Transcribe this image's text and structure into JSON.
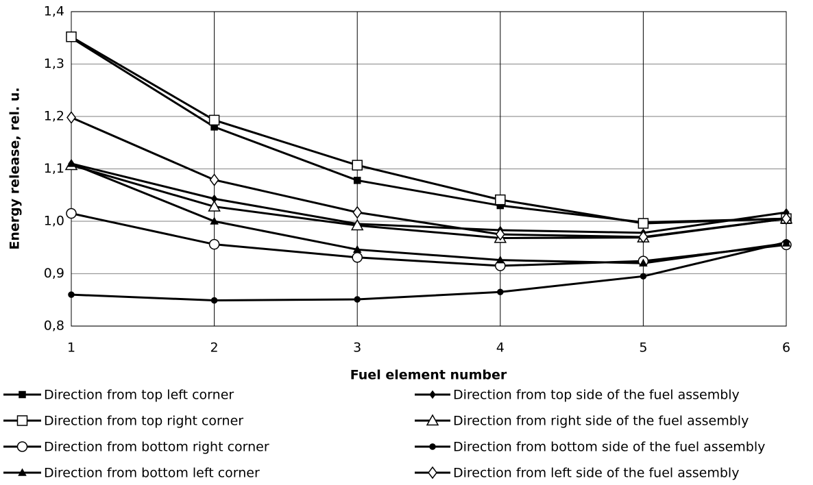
{
  "chart_data": {
    "type": "line",
    "x_label": "Fuel element number",
    "y_label": "Energy release, rel. u.",
    "x": [
      1,
      2,
      3,
      4,
      5,
      6
    ],
    "xlim": [
      1,
      6
    ],
    "xticks": [
      1,
      2,
      3,
      4,
      5,
      6
    ],
    "ylim": [
      0.8,
      1.4
    ],
    "yticks": [
      {
        "value": 0.8,
        "label": "0,8"
      },
      {
        "value": 0.9,
        "label": "0,9"
      },
      {
        "value": 1.0,
        "label": "1,0"
      },
      {
        "value": 1.1,
        "label": "1,1"
      },
      {
        "value": 1.2,
        "label": "1,2"
      },
      {
        "value": 1.3,
        "label": "1,3"
      },
      {
        "value": 1.4,
        "label": "1,4"
      }
    ],
    "grid": true,
    "series": [
      {
        "name": "Direction from top left corner",
        "color": "#000000",
        "marker": "square-filled",
        "values": [
          1.35,
          1.18,
          1.078,
          1.03,
          0.998,
          1.005
        ]
      },
      {
        "name": "Direction from top side of the fuel assembly",
        "color": "#000000",
        "marker": "diamond-filled",
        "values": [
          1.11,
          1.043,
          0.995,
          0.983,
          0.978,
          1.017
        ]
      },
      {
        "name": "Direction from top right corner",
        "color": "#000000",
        "marker": "square-open",
        "values": [
          1.352,
          1.193,
          1.107,
          1.041,
          0.996,
          1.005
        ]
      },
      {
        "name": "Direction from right side of the fuel assembly",
        "color": "#000000",
        "marker": "triangle-open",
        "values": [
          1.107,
          1.028,
          0.992,
          0.968,
          0.969,
          1.005
        ]
      },
      {
        "name": "Direction from bottom right corner",
        "color": "#000000",
        "marker": "circle-open",
        "values": [
          1.015,
          0.956,
          0.931,
          0.915,
          0.924,
          0.955
        ]
      },
      {
        "name": "Direction from bottom side of the fuel assembly",
        "color": "#000000",
        "marker": "circle-filled",
        "values": [
          0.86,
          0.849,
          0.851,
          0.865,
          0.895,
          0.96
        ]
      },
      {
        "name": "Direction from bottom left corner",
        "color": "#000000",
        "marker": "triangle-filled",
        "values": [
          1.11,
          1.0,
          0.946,
          0.926,
          0.92,
          0.958
        ]
      },
      {
        "name": "Direction from left side of the fuel assembly",
        "color": "#000000",
        "marker": "diamond-open",
        "values": [
          1.198,
          1.079,
          1.017,
          0.975,
          0.97,
          1.005
        ]
      }
    ]
  }
}
